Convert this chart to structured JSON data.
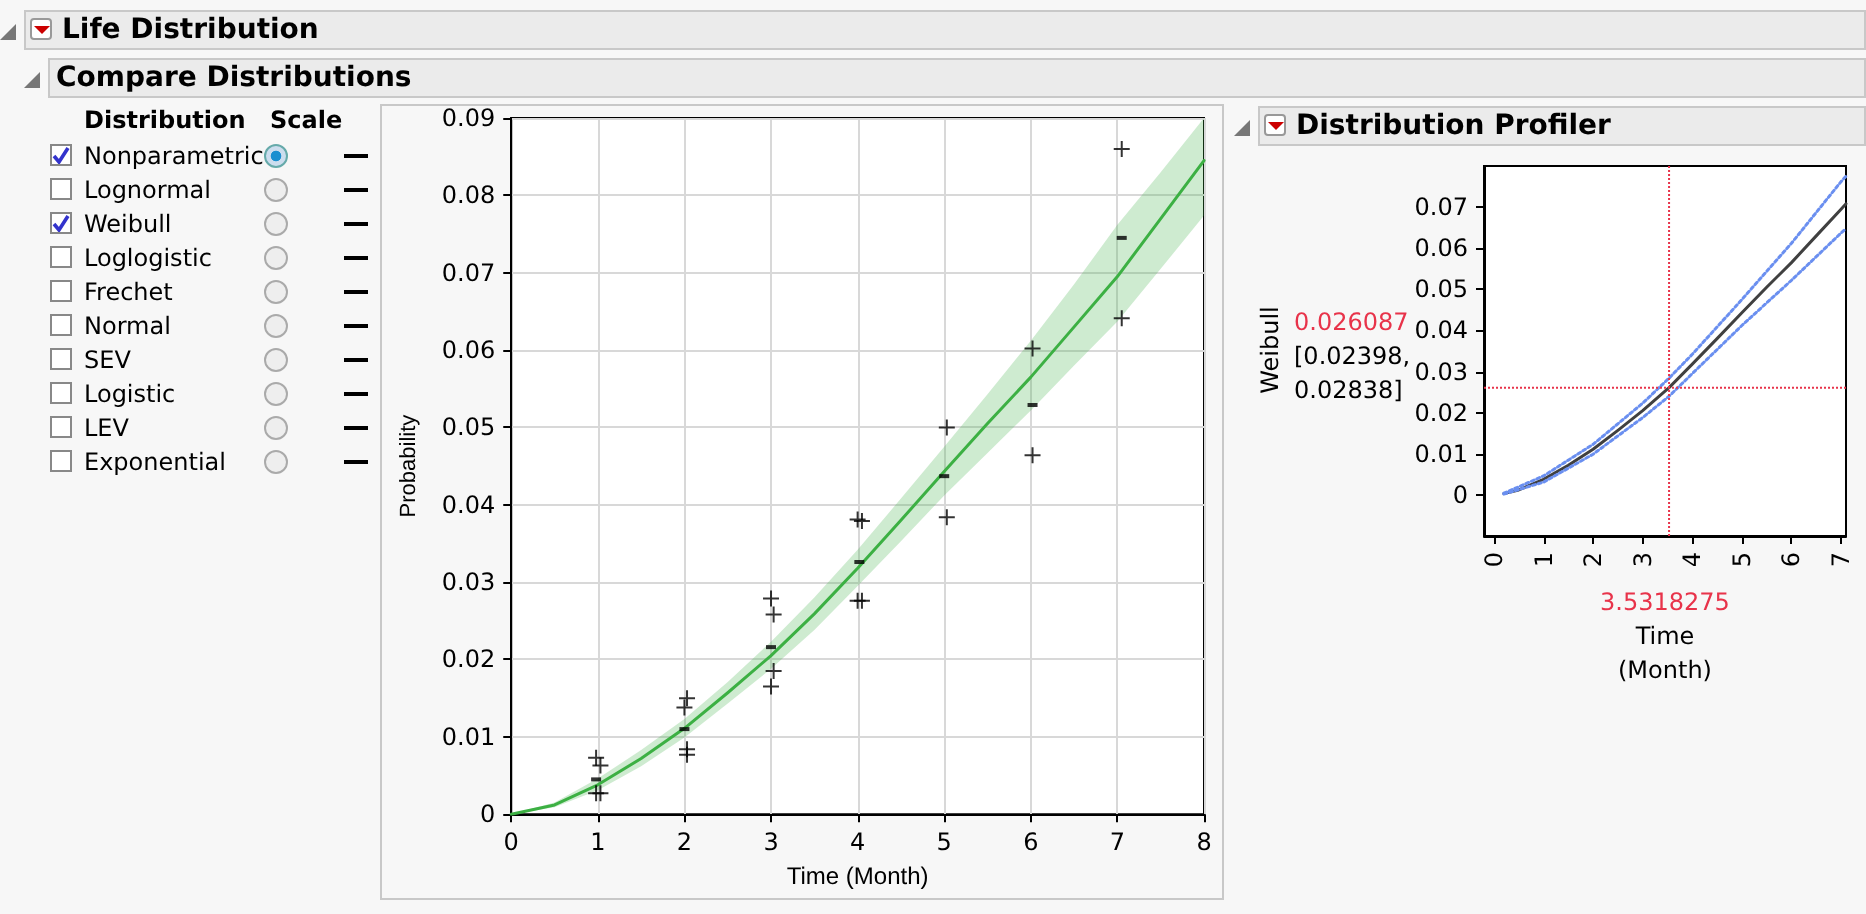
{
  "chart_data": [
    {
      "type": "other",
      "title": "Life Distribution",
      "subtitle": "Compare Distributions",
      "annotations": [
        "Distribution",
        "Scale",
        "Nonparametric",
        "Lognormal",
        "Weibull",
        "Loglogistic",
        "Frechet",
        "Normal",
        "SEV",
        "Logistic",
        "LEV",
        "Exponential"
      ]
    },
    {
      "type": "scatter",
      "xlabel": "Time (Month)",
      "ylabel": "Probability",
      "xlim": [
        0,
        8
      ],
      "ylim": [
        0,
        0.09
      ],
      "xticks": [
        0,
        1,
        2,
        3,
        4,
        5,
        6,
        7,
        8
      ],
      "yticks": [
        0,
        0.01,
        0.02,
        0.03,
        0.04,
        0.05,
        0.06,
        0.07,
        0.08,
        0.09
      ],
      "grid": true,
      "series": [
        {
          "marker": "cross",
          "color": "#000000",
          "x": [
            0.98,
            1.03,
            0.98,
            1.03,
            2.03,
            2.0,
            2.03,
            2.03,
            3.0,
            3.03,
            3.03,
            3.0,
            4.0,
            4.05,
            4.0,
            4.05,
            5.03,
            5.03,
            6.02,
            6.02,
            7.05,
            7.05
          ],
          "values": [
            0.0073,
            0.0063,
            0.0027,
            0.0027,
            0.015,
            0.0138,
            0.0084,
            0.0077,
            0.0279,
            0.0258,
            0.0185,
            0.0165,
            0.0381,
            0.0379,
            0.0276,
            0.0276,
            0.05,
            0.0384,
            0.0602,
            0.0464,
            0.086,
            0.0641
          ]
        },
        {
          "marker": "square",
          "color": "#000000",
          "x": [
            0.98,
            2.0,
            3.0,
            4.02,
            5.0,
            6.02,
            7.05
          ],
          "values": [
            0.0045,
            0.011,
            0.0216,
            0.0326,
            0.0437,
            0.0529,
            0.0745
          ]
        },
        {
          "type": "line",
          "marker": "none",
          "color": "#3cb043",
          "x": [
            0,
            0.5,
            1,
            1.5,
            2,
            2.5,
            3,
            3.5,
            4,
            4.5,
            5,
            5.5,
            6,
            6.5,
            7,
            7.5,
            8
          ],
          "values": [
            0,
            0.0012,
            0.0038,
            0.0072,
            0.0111,
            0.0157,
            0.0205,
            0.0259,
            0.0318,
            0.038,
            0.0443,
            0.0505,
            0.0565,
            0.063,
            0.0695,
            0.077,
            0.0845
          ],
          "upper": [
            0,
            0.0015,
            0.0046,
            0.0083,
            0.0123,
            0.0171,
            0.0223,
            0.028,
            0.0342,
            0.0408,
            0.0475,
            0.0543,
            0.0612,
            0.0685,
            0.0762,
            0.083,
            0.09
          ],
          "lower": [
            0,
            0.0009,
            0.0031,
            0.0062,
            0.0099,
            0.0143,
            0.0188,
            0.0238,
            0.0295,
            0.0353,
            0.0412,
            0.0467,
            0.0522,
            0.058,
            0.0637,
            0.0705,
            0.0774
          ]
        }
      ]
    },
    {
      "type": "line",
      "title": "Distribution Profiler",
      "xlabel": "Time (Month)",
      "ylabel": "Weibull",
      "xlim": [
        -0.2,
        7.1
      ],
      "ylim": [
        -0.01,
        0.08
      ],
      "xticks": [
        0,
        1,
        2,
        3,
        4,
        5,
        6,
        7
      ],
      "yticks": [
        0,
        0.01,
        0.02,
        0.03,
        0.04,
        0.05,
        0.06,
        0.07
      ],
      "marker": "none",
      "annotations": [
        "[0.02398, 0.02838]"
      ],
      "series": [
        {
          "color": "#404040",
          "x": [
            0.2,
            0.5,
            1,
            1.5,
            2,
            2.5,
            3,
            3.5318275,
            4,
            4.5,
            5,
            5.5,
            6,
            6.5,
            7,
            7.1
          ],
          "values": [
            0.0003,
            0.0012,
            0.0038,
            0.0072,
            0.0111,
            0.0157,
            0.0205,
            0.0261,
            0.0318,
            0.038,
            0.0443,
            0.0505,
            0.0565,
            0.063,
            0.0695,
            0.0708
          ]
        },
        {
          "color": "#6a8ff0",
          "line_style": "dotted",
          "x": [
            0.2,
            1,
            2,
            3,
            3.5318275,
            4,
            5,
            6,
            7,
            7.1
          ],
          "values": [
            0.0004,
            0.0046,
            0.0123,
            0.0223,
            0.0284,
            0.0342,
            0.0475,
            0.0612,
            0.0762,
            0.0775
          ]
        },
        {
          "color": "#6a8ff0",
          "line_style": "dotted",
          "x": [
            0.2,
            1,
            2,
            3,
            3.5318275,
            4,
            5,
            6,
            7,
            7.1
          ],
          "values": [
            0.0002,
            0.0031,
            0.0099,
            0.0188,
            0.024,
            0.0295,
            0.0412,
            0.0522,
            0.0637,
            0.0648
          ]
        }
      ],
      "ref_lines": [
        {
          "axis": "x",
          "value": 3.5318275,
          "label": "3.5318275",
          "color": "#e8334a",
          "line_style": "dotted"
        },
        {
          "axis": "y",
          "value": 0.026087,
          "label": "0.026087",
          "color": "#e8334a",
          "line_style": "dotted"
        }
      ]
    }
  ]
}
